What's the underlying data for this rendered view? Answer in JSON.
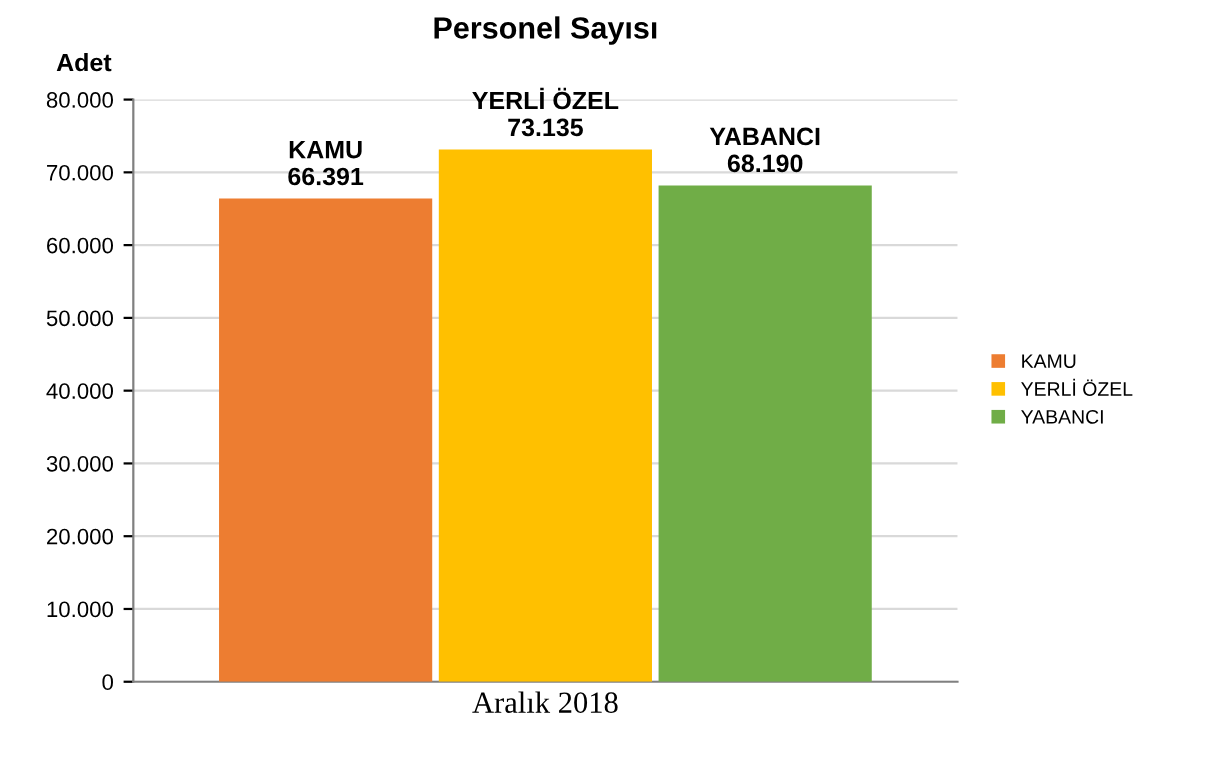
{
  "chart_data": {
    "type": "bar",
    "title": "Personel Sayısı",
    "ylabel": "Adet",
    "categories": [
      "Aralık 2018"
    ],
    "series": [
      {
        "name": "KAMU",
        "color": "#ed7d31",
        "values": [
          66391
        ],
        "value_labels": [
          "66.391"
        ]
      },
      {
        "name": "YERLİ ÖZEL",
        "color": "#ffc000",
        "values": [
          73135
        ],
        "value_labels": [
          "73.135"
        ]
      },
      {
        "name": "YABANCI",
        "color": "#70ad47",
        "values": [
          68190
        ],
        "value_labels": [
          "68.190"
        ]
      }
    ],
    "ylim": [
      0,
      80000
    ],
    "yticks": [
      {
        "value": 0,
        "label": "0"
      },
      {
        "value": 10000,
        "label": "10.000"
      },
      {
        "value": 20000,
        "label": "20.000"
      },
      {
        "value": 30000,
        "label": "30.000"
      },
      {
        "value": 40000,
        "label": "40.000"
      },
      {
        "value": 50000,
        "label": "50.000"
      },
      {
        "value": 60000,
        "label": "60.000"
      },
      {
        "value": 70000,
        "label": "70.000"
      },
      {
        "value": 80000,
        "label": "80.000"
      }
    ],
    "grid": "y",
    "legend": "right"
  }
}
